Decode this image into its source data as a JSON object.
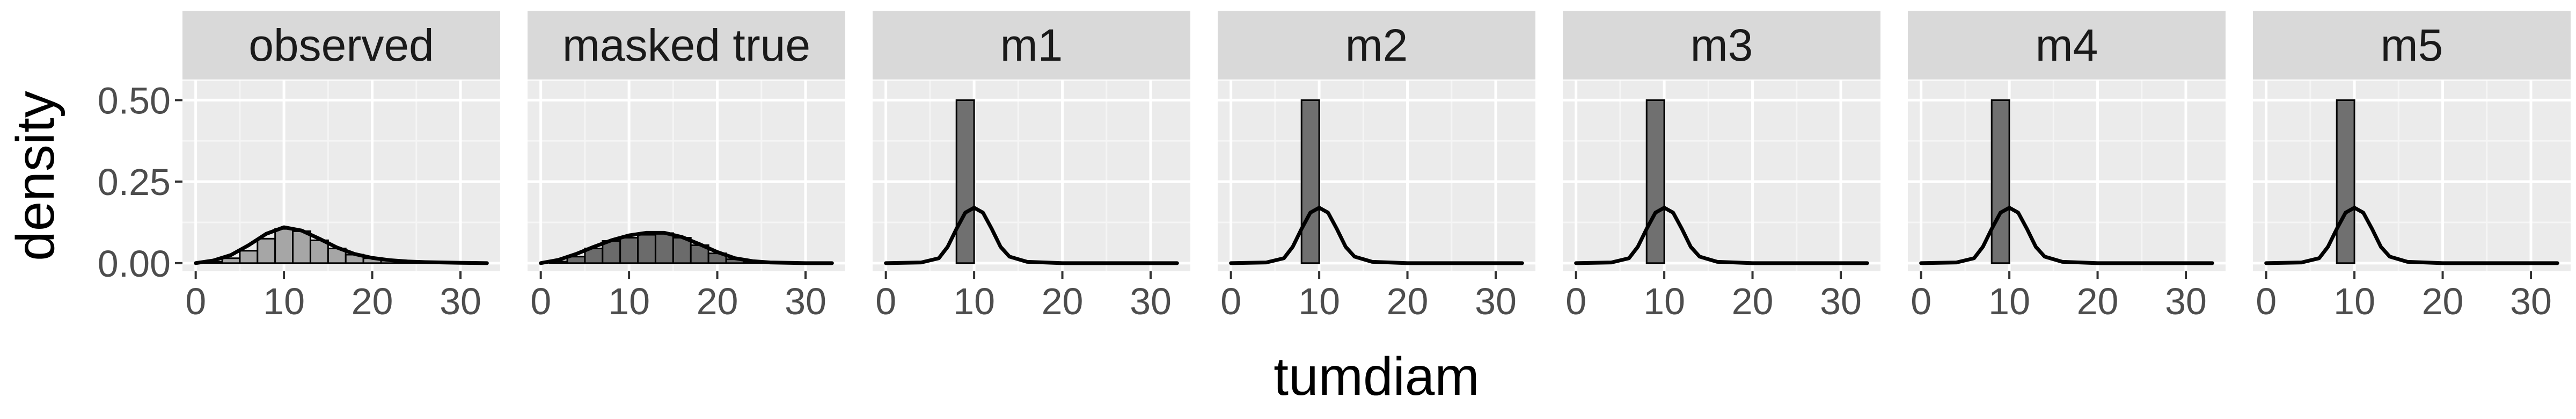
{
  "chart_data": {
    "type": "histogram-density-facets",
    "xlabel": "tumdiam",
    "ylabel": "density",
    "xlim": [
      -1.5,
      34.5
    ],
    "ylim": [
      -0.025,
      0.56
    ],
    "x_ticks": [
      0,
      10,
      20,
      30
    ],
    "y_ticks": [
      0.0,
      0.25,
      0.5
    ],
    "y_tick_labels": [
      "0.00",
      "0.25",
      "0.50"
    ],
    "grid": true,
    "facets": [
      {
        "label": "observed",
        "bar_fill": "#a6a6a6",
        "bars": [
          {
            "x0": 1,
            "x1": 3,
            "density": 0.004
          },
          {
            "x0": 3,
            "x1": 5,
            "density": 0.015
          },
          {
            "x0": 5,
            "x1": 7,
            "density": 0.038
          },
          {
            "x0": 7,
            "x1": 9,
            "density": 0.075
          },
          {
            "x0": 9,
            "x1": 11,
            "density": 0.105
          },
          {
            "x0": 11,
            "x1": 13,
            "density": 0.098
          },
          {
            "x0": 13,
            "x1": 15,
            "density": 0.07
          },
          {
            "x0": 15,
            "x1": 17,
            "density": 0.045
          },
          {
            "x0": 17,
            "x1": 19,
            "density": 0.026
          },
          {
            "x0": 19,
            "x1": 21,
            "density": 0.015
          },
          {
            "x0": 21,
            "x1": 23,
            "density": 0.008
          },
          {
            "x0": 23,
            "x1": 25,
            "density": 0.005
          },
          {
            "x0": 25,
            "x1": 27,
            "density": 0.003
          },
          {
            "x0": 27,
            "x1": 29,
            "density": 0.002
          },
          {
            "x0": 29,
            "x1": 33,
            "density": 0.001
          }
        ],
        "density_line": {
          "x": [
            0,
            2,
            4,
            6,
            8,
            10,
            12,
            14,
            16,
            18,
            20,
            22,
            24,
            26,
            28,
            30,
            33
          ],
          "y": [
            0.0,
            0.008,
            0.025,
            0.055,
            0.09,
            0.11,
            0.1,
            0.075,
            0.048,
            0.028,
            0.016,
            0.009,
            0.005,
            0.003,
            0.002,
            0.001,
            0.0
          ]
        }
      },
      {
        "label": "masked true",
        "bar_fill": "#6b6b6b",
        "bars": [
          {
            "x0": 1,
            "x1": 3,
            "density": 0.005
          },
          {
            "x0": 3,
            "x1": 5,
            "density": 0.02
          },
          {
            "x0": 5,
            "x1": 7,
            "density": 0.045
          },
          {
            "x0": 7,
            "x1": 9,
            "density": 0.068
          },
          {
            "x0": 9,
            "x1": 11,
            "density": 0.078
          },
          {
            "x0": 11,
            "x1": 13,
            "density": 0.087
          },
          {
            "x0": 13,
            "x1": 15,
            "density": 0.092
          },
          {
            "x0": 15,
            "x1": 17,
            "density": 0.078
          },
          {
            "x0": 17,
            "x1": 19,
            "density": 0.055
          },
          {
            "x0": 19,
            "x1": 21,
            "density": 0.03
          },
          {
            "x0": 21,
            "x1": 23,
            "density": 0.012
          },
          {
            "x0": 23,
            "x1": 25,
            "density": 0.004
          },
          {
            "x0": 25,
            "x1": 27,
            "density": 0.002
          }
        ],
        "density_line": {
          "x": [
            0,
            2,
            4,
            6,
            8,
            10,
            12,
            14,
            16,
            18,
            20,
            22,
            24,
            26,
            28,
            30,
            33
          ],
          "y": [
            0.0,
            0.01,
            0.028,
            0.05,
            0.07,
            0.085,
            0.093,
            0.093,
            0.08,
            0.058,
            0.034,
            0.015,
            0.006,
            0.002,
            0.001,
            0.0,
            0.0
          ]
        }
      },
      {
        "label": "m1",
        "bar_fill": "#707070",
        "bars": [
          {
            "x0": 8,
            "x1": 10,
            "density": 0.5
          }
        ],
        "density_line": {
          "x": [
            0,
            4,
            6,
            7,
            8,
            9,
            10,
            11,
            12,
            13,
            14,
            16,
            20,
            33
          ],
          "y": [
            0.0,
            0.002,
            0.015,
            0.05,
            0.105,
            0.155,
            0.17,
            0.155,
            0.105,
            0.05,
            0.02,
            0.004,
            0.0,
            0.0
          ]
        }
      },
      {
        "label": "m2",
        "bar_fill": "#707070",
        "bars": [
          {
            "x0": 8,
            "x1": 10,
            "density": 0.5
          }
        ],
        "density_line": {
          "x": [
            0,
            4,
            6,
            7,
            8,
            9,
            10,
            11,
            12,
            13,
            14,
            16,
            20,
            33
          ],
          "y": [
            0.0,
            0.002,
            0.015,
            0.05,
            0.105,
            0.155,
            0.17,
            0.155,
            0.105,
            0.05,
            0.02,
            0.004,
            0.0,
            0.0
          ]
        }
      },
      {
        "label": "m3",
        "bar_fill": "#707070",
        "bars": [
          {
            "x0": 8,
            "x1": 10,
            "density": 0.5
          }
        ],
        "density_line": {
          "x": [
            0,
            4,
            6,
            7,
            8,
            9,
            10,
            11,
            12,
            13,
            14,
            16,
            20,
            33
          ],
          "y": [
            0.0,
            0.002,
            0.015,
            0.05,
            0.105,
            0.155,
            0.17,
            0.155,
            0.105,
            0.05,
            0.02,
            0.004,
            0.0,
            0.0
          ]
        }
      },
      {
        "label": "m4",
        "bar_fill": "#707070",
        "bars": [
          {
            "x0": 8,
            "x1": 10,
            "density": 0.5
          }
        ],
        "density_line": {
          "x": [
            0,
            4,
            6,
            7,
            8,
            9,
            10,
            11,
            12,
            13,
            14,
            16,
            20,
            33
          ],
          "y": [
            0.0,
            0.002,
            0.015,
            0.05,
            0.105,
            0.155,
            0.17,
            0.155,
            0.105,
            0.05,
            0.02,
            0.004,
            0.0,
            0.0
          ]
        }
      },
      {
        "label": "m5",
        "bar_fill": "#707070",
        "bars": [
          {
            "x0": 8,
            "x1": 10,
            "density": 0.5
          }
        ],
        "density_line": {
          "x": [
            0,
            4,
            6,
            7,
            8,
            9,
            10,
            11,
            12,
            13,
            14,
            16,
            20,
            33
          ],
          "y": [
            0.0,
            0.002,
            0.015,
            0.05,
            0.105,
            0.155,
            0.17,
            0.155,
            0.105,
            0.05,
            0.02,
            0.004,
            0.0,
            0.0
          ]
        }
      }
    ]
  }
}
